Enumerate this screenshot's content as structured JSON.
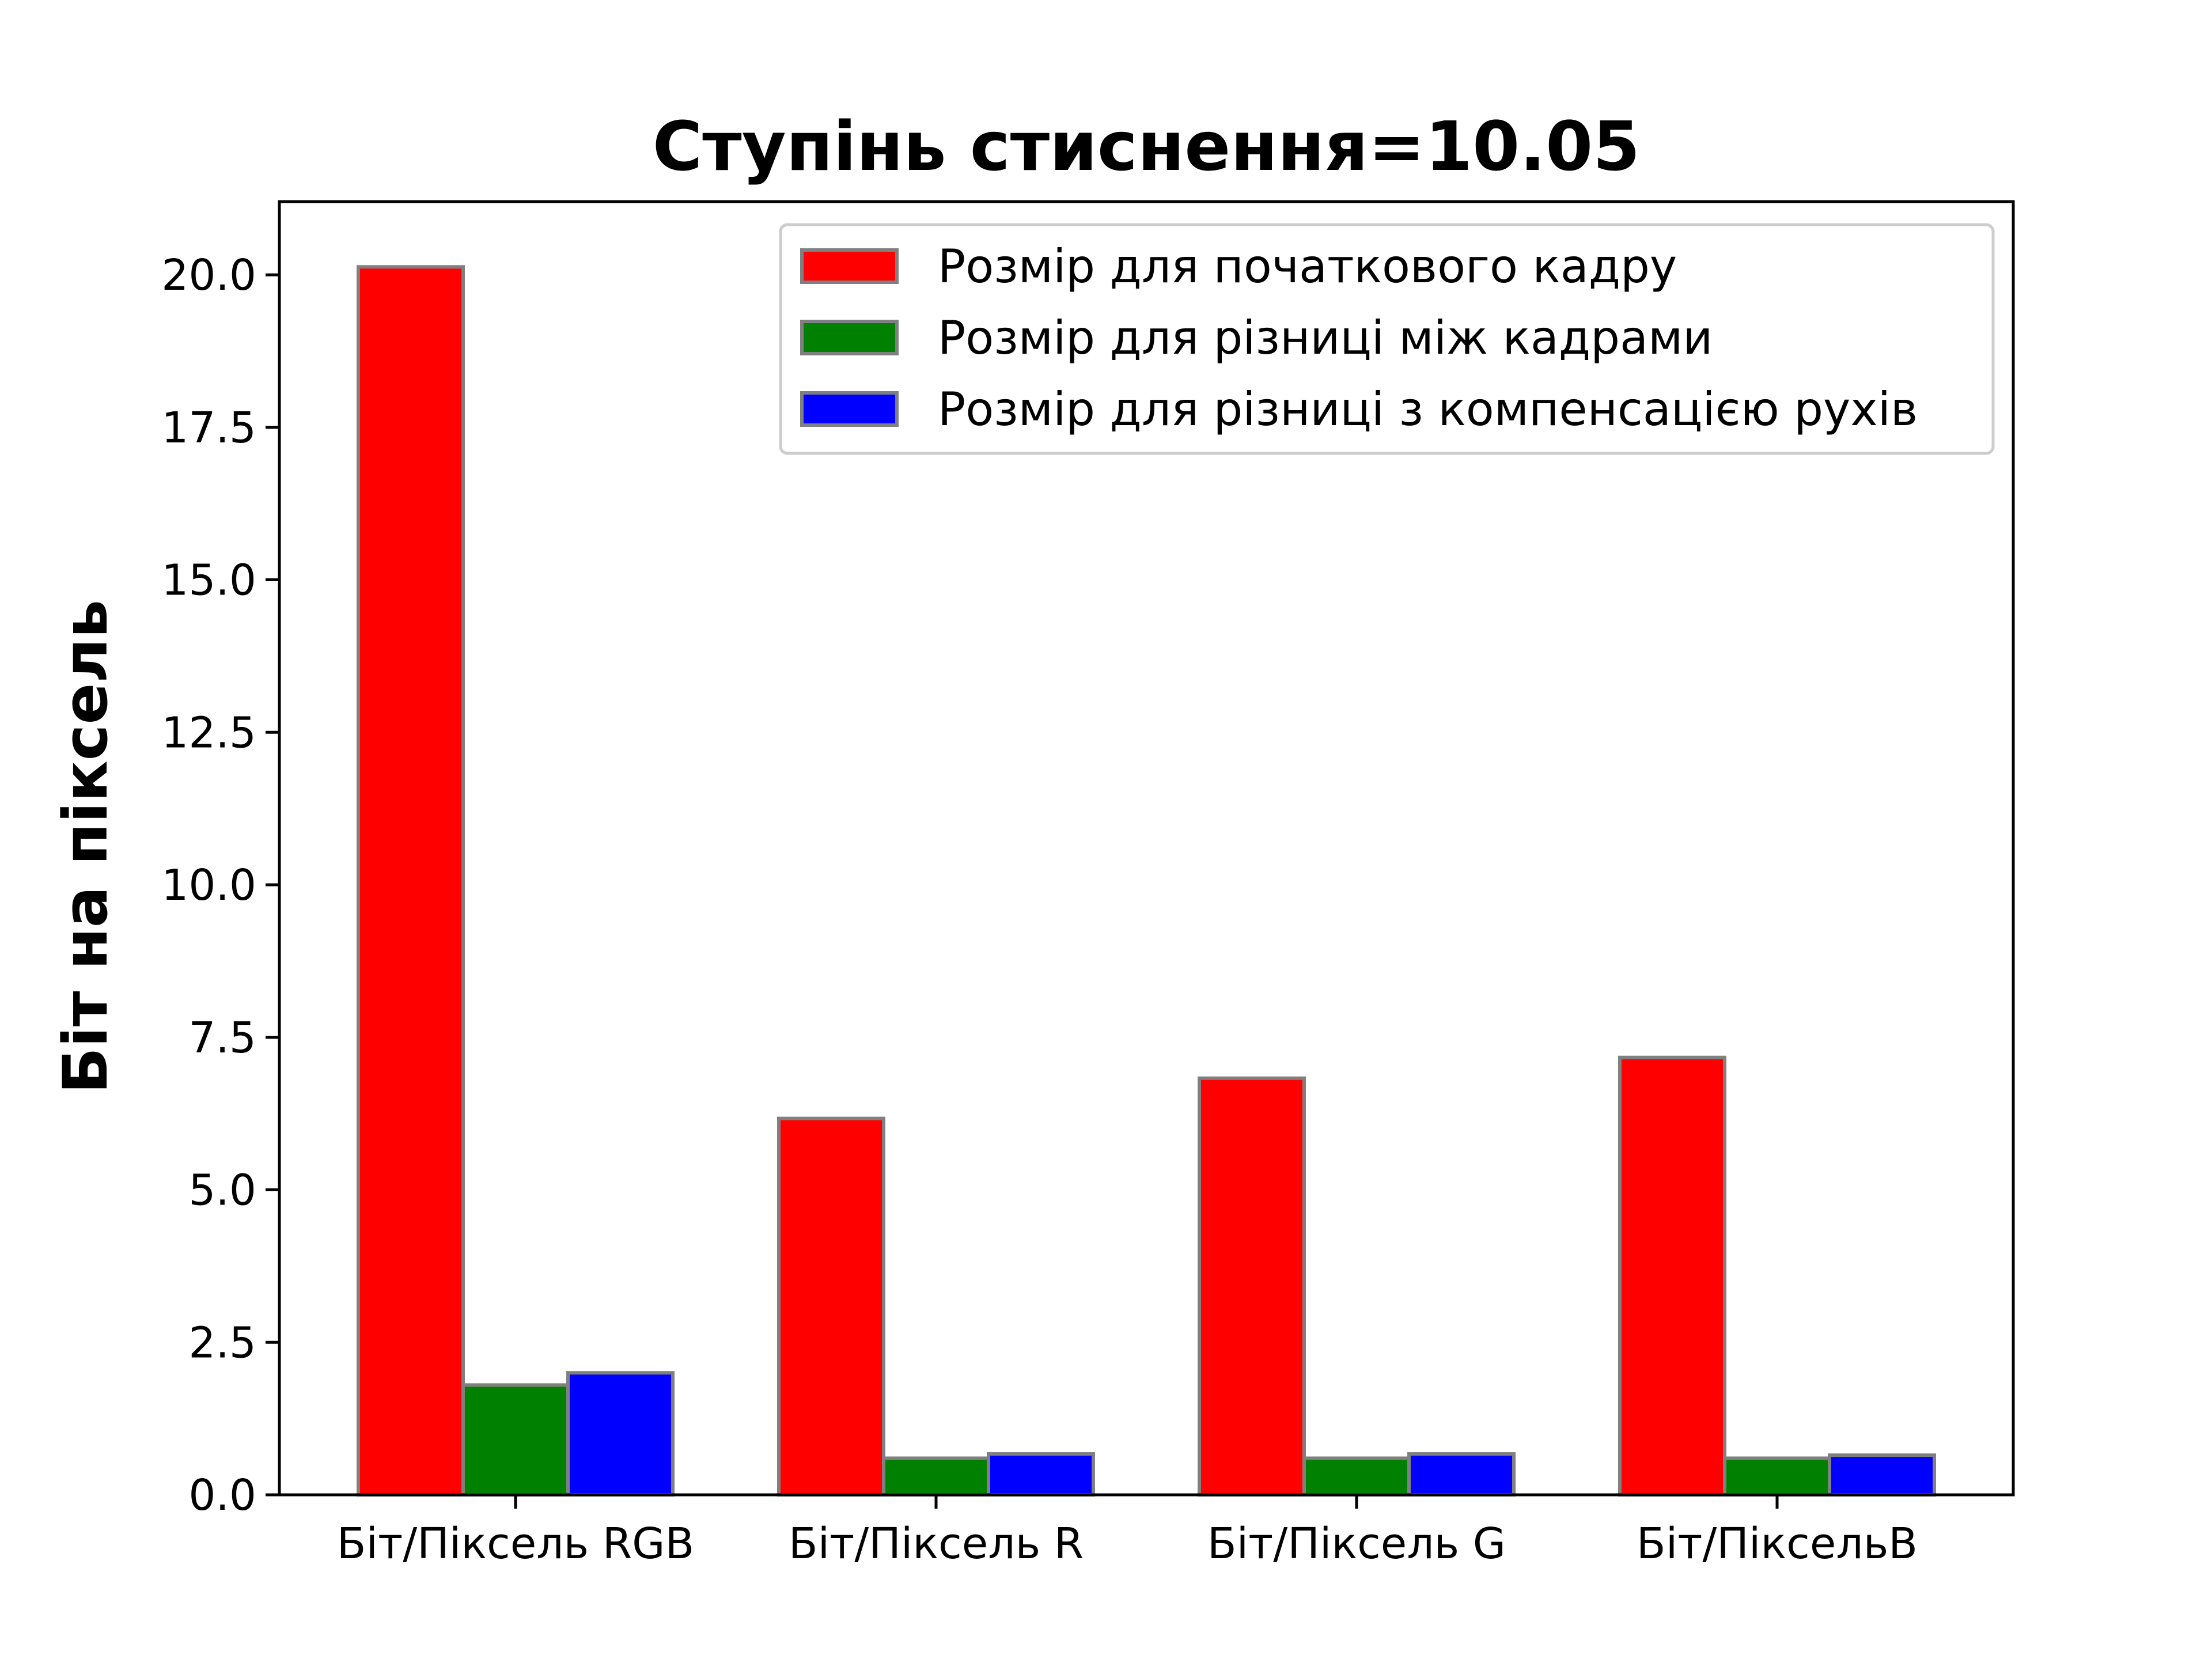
{
  "chart_data": {
    "type": "bar",
    "title": "Ступінь стиснення=10.05",
    "xlabel": "",
    "ylabel": "Біт на піксель",
    "categories": [
      "Біт/Піксель RGB",
      "Біт/Піксель R",
      "Біт/Піксель G",
      "Біт/ПіксельB"
    ],
    "series": [
      {
        "name": "Розмір для початкового кадру",
        "color": "#ff0000",
        "values": [
          20.13,
          6.17,
          6.83,
          7.17
        ]
      },
      {
        "name": "Розмір для різниці між кадрами",
        "color": "#008000",
        "values": [
          1.8,
          0.6,
          0.6,
          0.6
        ]
      },
      {
        "name": "Розмір для різниці з компенсацією рухів",
        "color": "#0000ff",
        "values": [
          2.0,
          0.67,
          0.67,
          0.65
        ]
      }
    ],
    "ylim": [
      0,
      21.2
    ],
    "yticks": [
      "0.0",
      "2.5",
      "5.0",
      "7.5",
      "10.0",
      "12.5",
      "15.0",
      "17.5",
      "20.0"
    ],
    "grid": false,
    "legend_position": "top-right",
    "bar_edge_color": "#808080"
  }
}
